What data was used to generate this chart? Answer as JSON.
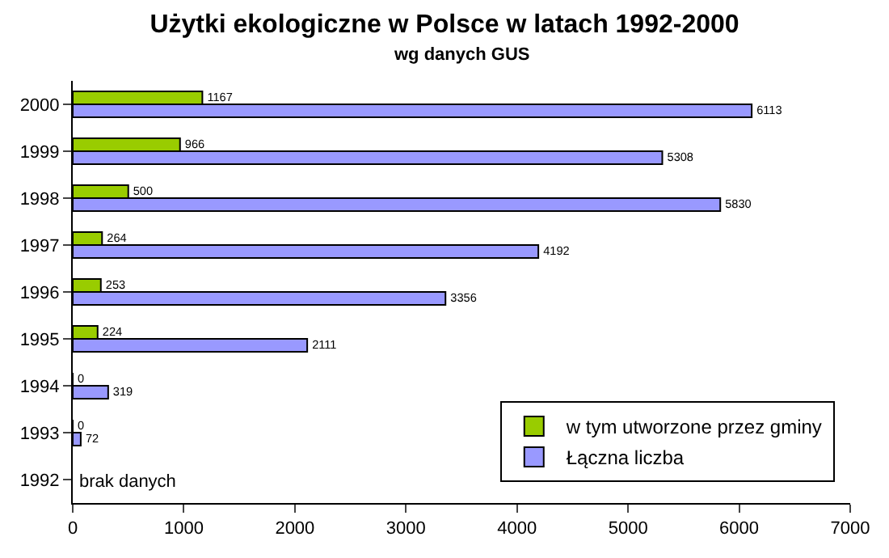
{
  "chart_data": {
    "type": "bar",
    "orientation": "horizontal",
    "title": "Użytki ekologiczne w Polsce w latach 1992-2000",
    "subtitle": "wg danych GUS",
    "categories": [
      "2000",
      "1999",
      "1998",
      "1997",
      "1996",
      "1995",
      "1994",
      "1993",
      "1992"
    ],
    "series": [
      {
        "name": "w tym utworzone przez gminy",
        "color": "#99cc00",
        "values": [
          1167,
          966,
          500,
          264,
          253,
          224,
          0,
          0,
          null
        ]
      },
      {
        "name": "Łączna liczba",
        "color": "#9999ff",
        "values": [
          6113,
          5308,
          5830,
          4192,
          3356,
          2111,
          319,
          72,
          null
        ]
      }
    ],
    "xlim": [
      0,
      7000
    ],
    "xticks": [
      0,
      1000,
      2000,
      3000,
      4000,
      5000,
      6000,
      7000
    ],
    "annotations": [
      "brak danych"
    ],
    "data_labels": true,
    "grid": false,
    "legend": "bottom right"
  }
}
